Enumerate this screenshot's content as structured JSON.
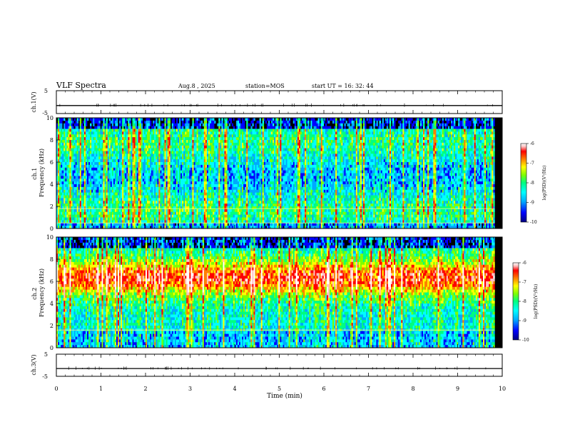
{
  "header": {
    "title": "VLF Spectra",
    "date": "Aug.8 , 2025",
    "station": "station=MOS",
    "start_ut": "start UT = 16: 32: 44"
  },
  "chart_data": [
    {
      "type": "line",
      "name": "ch1-waveform-panel",
      "ylabel": "ch.1(V)",
      "ylim": [
        -5,
        5
      ],
      "yticks": [
        "5",
        "-5"
      ],
      "xlim": [
        0,
        10
      ],
      "baseline_value": -1.5
    },
    {
      "type": "heatmap",
      "name": "ch1-spectrogram",
      "ylabel": "ch.1 Frequency (kHz)",
      "ylim": [
        0,
        10
      ],
      "yticks": [
        "0",
        "2",
        "4",
        "6",
        "8",
        "10"
      ],
      "xlim": [
        0,
        10
      ],
      "data_end_min": 9.83,
      "colorbar": {
        "label": "log(PSD)(V²/Hz)",
        "range": [
          -10,
          -6
        ],
        "ticks": [
          "-6",
          "-7",
          "-8",
          "-9",
          "-10"
        ]
      },
      "horizontal_lines_khz": [
        0.5,
        1.8
      ]
    },
    {
      "type": "heatmap",
      "name": "ch2-spectrogram",
      "ylabel": "ch.2 Frequency (kHz)",
      "ylim": [
        0,
        10
      ],
      "yticks": [
        "0",
        "2",
        "4",
        "6",
        "8",
        "10"
      ],
      "xlim": [
        0,
        10
      ],
      "data_end_min": 9.83,
      "colorbar": {
        "label": "log(PSD)(V²/Hz)",
        "range": [
          -10,
          -6
        ],
        "ticks": [
          "-6",
          "-7",
          "-8",
          "-9",
          "-10"
        ]
      },
      "horizontal_lines_khz": [
        1.6
      ]
    },
    {
      "type": "line",
      "name": "ch3-waveform-panel",
      "ylabel": "ch.3(V)",
      "ylim": [
        -5,
        5
      ],
      "yticks": [
        "5",
        "-5"
      ],
      "xlim": [
        0,
        10
      ],
      "baseline_value": -1.5
    }
  ],
  "x_axis": {
    "label": "Time (min)",
    "ticks": [
      "0",
      "1",
      "2",
      "3",
      "4",
      "5",
      "6",
      "7",
      "8",
      "9",
      "10"
    ]
  },
  "colors": {
    "colormap": [
      "#000080",
      "#0000ff",
      "#00aaff",
      "#00ffff",
      "#00ff80",
      "#80ff00",
      "#ffff00",
      "#ff8000",
      "#ff0000",
      "#ffc0c0",
      "#ffffff"
    ]
  }
}
